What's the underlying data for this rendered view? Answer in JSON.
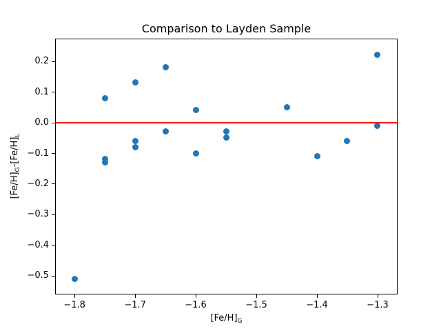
{
  "chart_data": {
    "type": "scatter",
    "title": "Comparison to Layden Sample",
    "xlabel": "[Fe/H]_G",
    "ylabel": "[Fe/H]_G-[Fe/H]_L",
    "xlim": [
      -1.832,
      -1.267
    ],
    "ylim": [
      -0.5615,
      0.274
    ],
    "grid": false,
    "legend": "none",
    "marker_color": "#1f77b4",
    "refline": {
      "y": 0.0,
      "color": "#ff0000"
    },
    "xticks": [
      -1.8,
      -1.7,
      -1.6,
      -1.5,
      -1.4,
      -1.3
    ],
    "xtick_labels": [
      "−1.8",
      "−1.7",
      "−1.6",
      "−1.5",
      "−1.4",
      "−1.3"
    ],
    "yticks": [
      0.2,
      0.1,
      0.0,
      -0.1,
      -0.2,
      -0.3,
      -0.4,
      -0.5
    ],
    "ytick_labels": [
      "0.2",
      "0.1",
      "0.0",
      "−0.1",
      "−0.2",
      "−0.3",
      "−0.4",
      "−0.5"
    ],
    "points": [
      {
        "x": -1.8,
        "y": -0.51
      },
      {
        "x": -1.75,
        "y": 0.08
      },
      {
        "x": -1.75,
        "y": -0.12
      },
      {
        "x": -1.75,
        "y": -0.13
      },
      {
        "x": -1.7,
        "y": 0.13
      },
      {
        "x": -1.7,
        "y": -0.06
      },
      {
        "x": -1.7,
        "y": -0.08
      },
      {
        "x": -1.65,
        "y": 0.18
      },
      {
        "x": -1.65,
        "y": -0.03
      },
      {
        "x": -1.6,
        "y": 0.04
      },
      {
        "x": -1.6,
        "y": -0.1
      },
      {
        "x": -1.55,
        "y": -0.03
      },
      {
        "x": -1.55,
        "y": -0.05
      },
      {
        "x": -1.45,
        "y": 0.05
      },
      {
        "x": -1.4,
        "y": -0.11
      },
      {
        "x": -1.35,
        "y": -0.06
      },
      {
        "x": -1.3,
        "y": 0.22
      },
      {
        "x": -1.3,
        "y": -0.01
      }
    ]
  }
}
